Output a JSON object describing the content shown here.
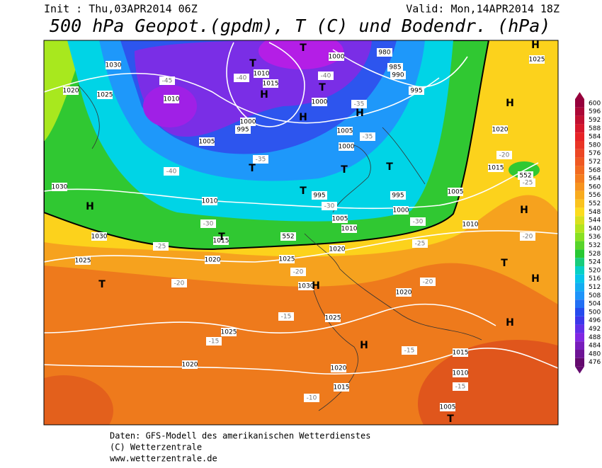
{
  "header": {
    "init": "Init : Thu,03APR2014 06Z",
    "valid": "Valid: Mon,14APR2014 18Z",
    "title": "500 hPa Geopot.(gpdm), T (C) und Bodendr. (hPa)"
  },
  "map": {
    "pressure_labels": [
      "1030",
      "1020",
      "1025",
      "1010",
      "1005",
      "1000",
      "995",
      "1010",
      "1015",
      "1000",
      "980",
      "985",
      "990",
      "995",
      "1000",
      "1005",
      "1000",
      "995",
      "995",
      "1000",
      "1005",
      "1010",
      "1005",
      "1010",
      "1015",
      "1030",
      "1030",
      "1025",
      "1020",
      "1025",
      "1020",
      "1010",
      "1015",
      "1020",
      "1025",
      "1020",
      "1025",
      "1025",
      "1020",
      "1020",
      "1015",
      "1015",
      "1010",
      "1005",
      "1030"
    ],
    "temperature_labels": [
      "-45",
      "-40",
      "-40",
      "-35",
      "-35",
      "-35",
      "-40",
      "-30",
      "-30",
      "-25",
      "-30",
      "-25",
      "-20",
      "-20",
      "-20",
      "-15",
      "-15",
      "-15",
      "-15",
      "-10",
      "-20",
      "-25",
      "-20"
    ],
    "geopotential_labels": [
      "552",
      "552"
    ],
    "systems": [
      "T",
      "T",
      "H",
      "T",
      "H",
      "H",
      "T",
      "T",
      "T",
      "T",
      "T",
      "H",
      "T",
      "H",
      "H",
      "T",
      "H",
      "H",
      "H",
      "H",
      "H",
      "T"
    ]
  },
  "colorbar": {
    "ticks": [
      600,
      596,
      592,
      588,
      584,
      580,
      576,
      572,
      568,
      564,
      560,
      556,
      552,
      548,
      544,
      540,
      536,
      532,
      528,
      524,
      520,
      516,
      512,
      508,
      504,
      500,
      496,
      492,
      488,
      484,
      480,
      476
    ]
  },
  "footer": {
    "lines": [
      "Daten: GFS-Modell des amerikanischen Wetterdienstes",
      "(C) Wetterzentrale",
      "www.wetterzentrale.de"
    ]
  }
}
